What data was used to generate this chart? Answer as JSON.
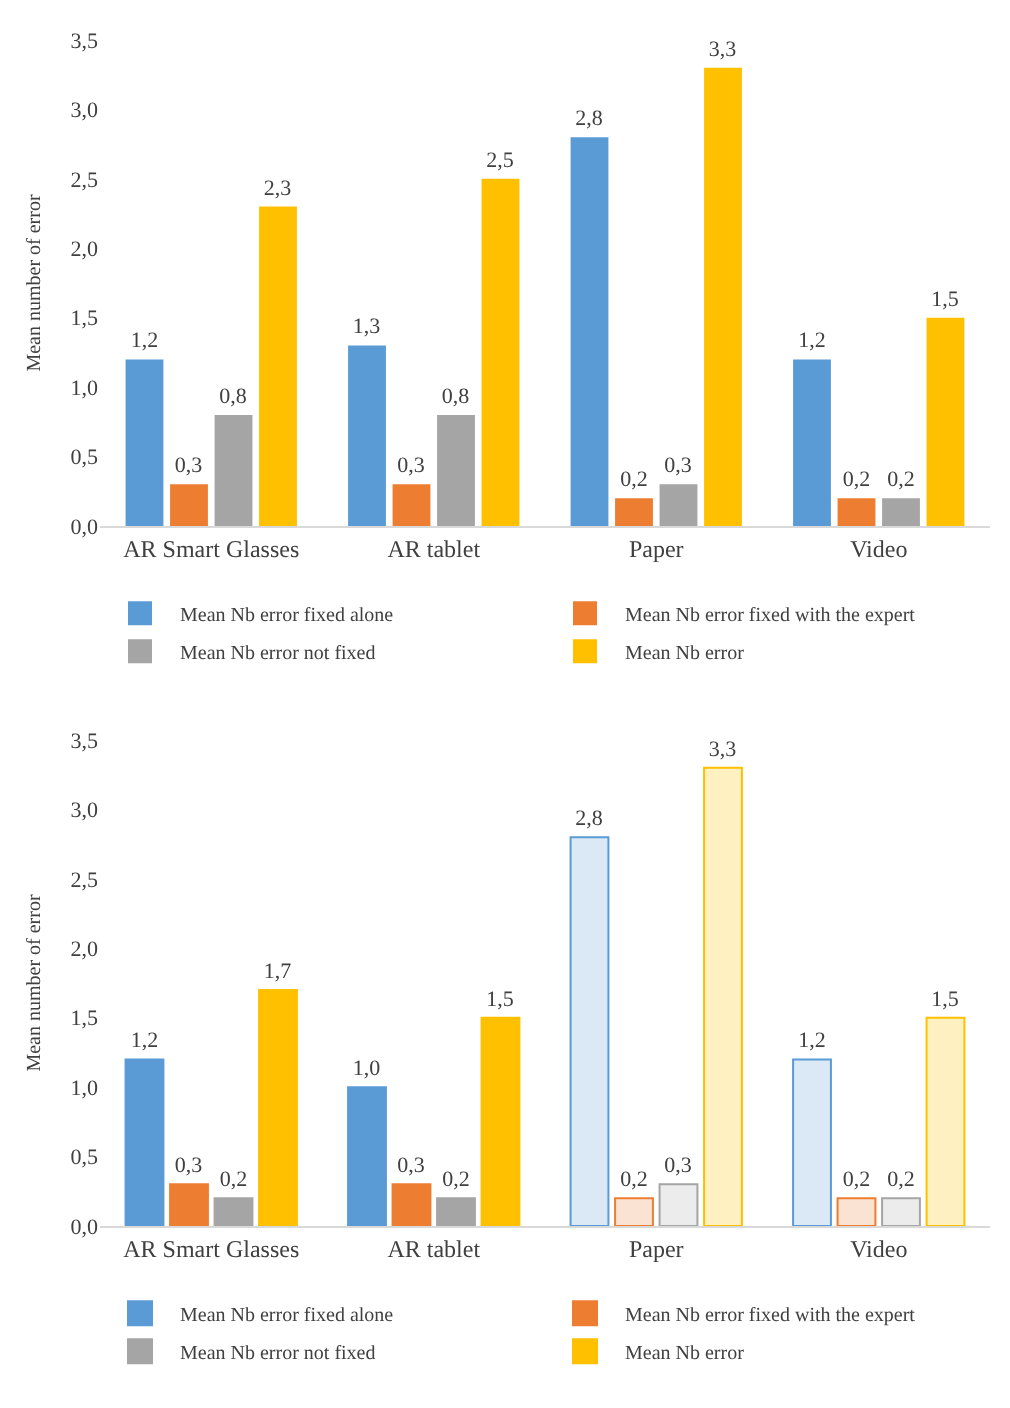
{
  "chart_data": [
    {
      "type": "bar",
      "ylabel": "Mean number of error",
      "categories": [
        "AR Smart Glasses",
        "AR tablet",
        "Paper",
        "Video"
      ],
      "ylim": [
        0,
        3.5
      ],
      "yticks": [
        {
          "value": 0,
          "label": "0,0"
        },
        {
          "value": 0.5,
          "label": "0,5"
        },
        {
          "value": 1,
          "label": "1,0"
        },
        {
          "value": 1.5,
          "label": "1,5"
        },
        {
          "value": 2,
          "label": "2,0"
        },
        {
          "value": 2.5,
          "label": "2,5"
        },
        {
          "value": 3,
          "label": "3,0"
        },
        {
          "value": 3.5,
          "label": "3,5"
        }
      ],
      "legend": "bottom",
      "series": [
        {
          "name": "Mean Nb error fixed alone",
          "color": "#5b9bd5",
          "values": [
            1.2,
            1.3,
            2.8,
            1.2
          ],
          "value_labels": [
            "1,2",
            "1,3",
            "2,8",
            "1,2"
          ]
        },
        {
          "name": "Mean Nb error fixed with the expert",
          "color": "#ed7d31",
          "values": [
            0.3,
            0.3,
            0.2,
            0.2
          ],
          "value_labels": [
            "0,3",
            "0,3",
            "0,2",
            "0,2"
          ]
        },
        {
          "name": "Mean Nb error not fixed",
          "color": "#a5a5a5",
          "values": [
            0.8,
            0.8,
            0.3,
            0.2
          ],
          "value_labels": [
            "0,8",
            "0,8",
            "0,3",
            "0,2"
          ]
        },
        {
          "name": "Mean Nb error",
          "color": "#ffc000",
          "values": [
            2.3,
            2.5,
            3.3,
            1.5
          ],
          "value_labels": [
            "2,3",
            "2,5",
            "3,3",
            "1,5"
          ]
        }
      ]
    },
    {
      "type": "bar",
      "ylabel": "Mean number of error",
      "categories": [
        "AR Smart Glasses",
        "AR tablet",
        "Paper",
        "Video"
      ],
      "ylim": [
        0,
        3.5
      ],
      "yticks": [
        {
          "value": 0,
          "label": "0,0"
        },
        {
          "value": 0.5,
          "label": "0,5"
        },
        {
          "value": 1,
          "label": "1,0"
        },
        {
          "value": 1.5,
          "label": "1,5"
        },
        {
          "value": 2,
          "label": "2,0"
        },
        {
          "value": 2.5,
          "label": "2,5"
        },
        {
          "value": 3,
          "label": "3,0"
        },
        {
          "value": 3.5,
          "label": "3,5"
        }
      ],
      "legend": "bottom",
      "series": [
        {
          "name": "Mean Nb error fixed alone",
          "color": "#5b9bd5",
          "colors": [
            "#5b9bd5",
            "#5b9bd5",
            "#dbe8f5",
            "#dbe8f5"
          ],
          "values": [
            1.2,
            1.0,
            2.8,
            1.2
          ],
          "value_labels": [
            "1,2",
            "1,0",
            "2,8",
            "1,2"
          ]
        },
        {
          "name": "Mean Nb error fixed with the expert",
          "color": "#ed7d31",
          "colors": [
            "#ed7d31",
            "#ed7d31",
            "#fbe3d4",
            "#fbe3d4"
          ],
          "values": [
            0.3,
            0.3,
            0.2,
            0.2
          ],
          "value_labels": [
            "0,3",
            "0,3",
            "0,2",
            "0,2"
          ]
        },
        {
          "name": "Mean Nb error not fixed",
          "color": "#a5a5a5",
          "colors": [
            "#a5a5a5",
            "#a5a5a5",
            "#ececec",
            "#ececec"
          ],
          "values": [
            0.2,
            0.2,
            0.3,
            0.2
          ],
          "value_labels": [
            "0,2",
            "0,2",
            "0,3",
            "0,2"
          ]
        },
        {
          "name": "Mean Nb error",
          "color": "#ffc000",
          "colors": [
            "#ffc000",
            "#ffc000",
            "#fff0c2",
            "#fff0c2"
          ],
          "values": [
            1.7,
            1.5,
            3.3,
            1.5
          ],
          "value_labels": [
            "1,7",
            "1,5",
            "3,3",
            "1,5"
          ]
        }
      ]
    }
  ]
}
